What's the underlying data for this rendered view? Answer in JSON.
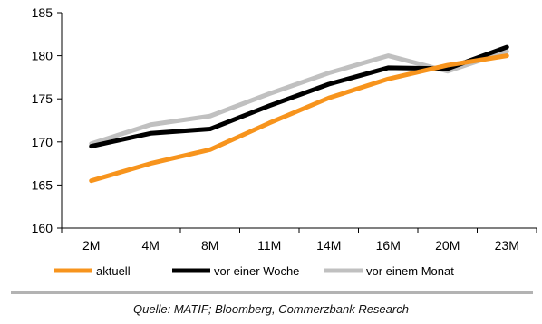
{
  "chart_data": {
    "type": "line",
    "categories": [
      "2M",
      "4M",
      "8M",
      "11M",
      "14M",
      "16M",
      "20M",
      "23M"
    ],
    "series": [
      {
        "name": "aktuell",
        "color": "#f7941d",
        "values": [
          165.5,
          167.5,
          169.1,
          172.2,
          175.1,
          177.3,
          178.9,
          180.0
        ]
      },
      {
        "name": "vor einer Woche",
        "color": "#000000",
        "values": [
          169.5,
          171.0,
          171.5,
          174.2,
          176.7,
          178.6,
          178.5,
          181.0
        ]
      },
      {
        "name": "vor einem Monat",
        "color": "#c0c0c0",
        "values": [
          169.8,
          172.0,
          173.0,
          175.6,
          178.0,
          180.0,
          178.2,
          180.5
        ]
      }
    ],
    "yticks": [
      "160",
      "165",
      "170",
      "175",
      "180",
      "185"
    ],
    "ylim": [
      160,
      185
    ],
    "grid": false,
    "legend_position": "bottom"
  },
  "source": "Quelle: MATIF; Bloomberg, Commerzbank Research"
}
